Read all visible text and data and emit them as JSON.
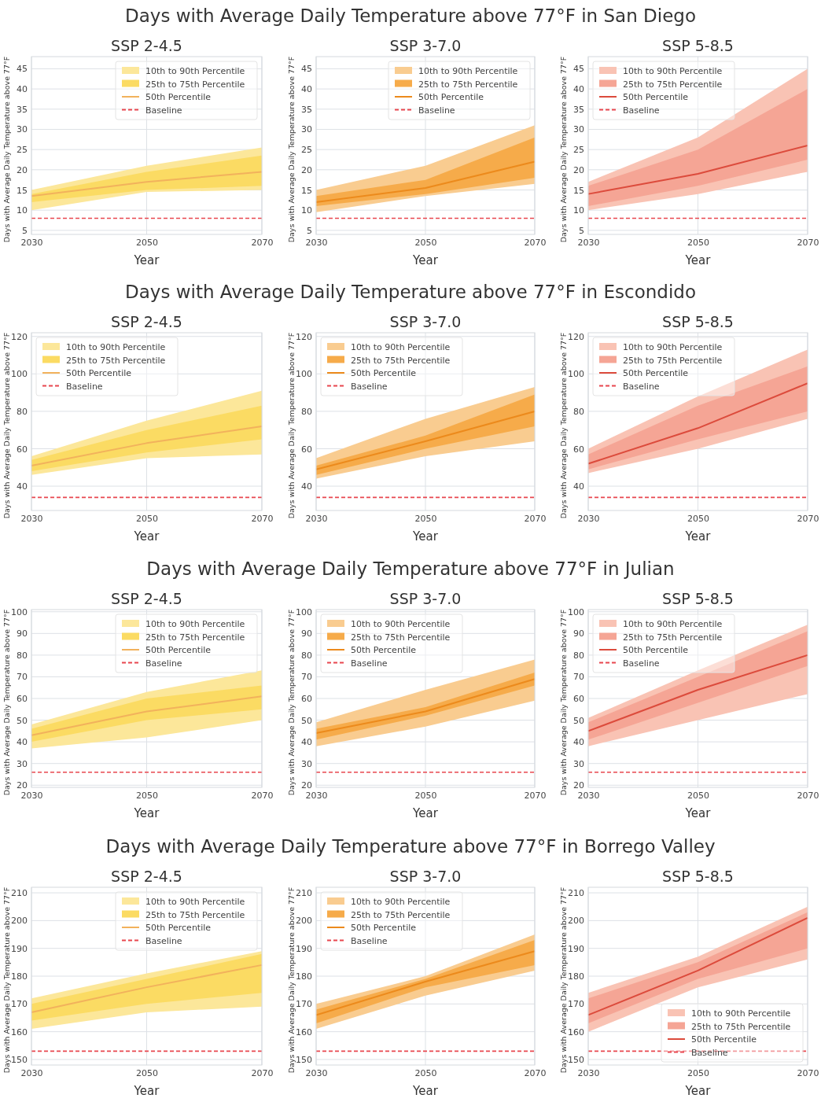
{
  "chart_data": [
    {
      "type": "line",
      "title": "Days with Average Daily Temperature above 77°F in San Diego",
      "subtitle": "SSP 2-4.5",
      "xlabel": "Year",
      "ylabel": "Days with Average Daily Temperature above 77°F",
      "x": [
        2030,
        2050,
        2070
      ],
      "xlim": [
        2030,
        2070
      ],
      "xticks": [
        2030,
        2050,
        2070
      ],
      "ylim": [
        4,
        48
      ],
      "yticks": [
        5,
        10,
        15,
        20,
        25,
        30,
        35,
        40,
        45
      ],
      "grid": true,
      "legend": "top right",
      "series": [
        {
          "name": "10th to 90th Percentile",
          "color": "#fce79a",
          "values": [
            null,
            null,
            null
          ],
          "lower": [
            10,
            14.5,
            15
          ],
          "upper": [
            15,
            21,
            25.5
          ]
        },
        {
          "name": "25th to 75th Percentile",
          "color": "#fbdb63",
          "values": [
            null,
            null,
            null
          ],
          "lower": [
            12,
            15,
            16
          ],
          "upper": [
            14,
            19.5,
            23.5
          ]
        },
        {
          "name": "50th Percentile",
          "color": "#f2b25c",
          "values": [
            13.5,
            17,
            19.5
          ]
        }
      ],
      "ref_lines": [
        {
          "axis": "y",
          "value": 8,
          "label": "Baseline",
          "color": "#e8474f",
          "line_style": "dashed"
        }
      ]
    },
    {
      "type": "line",
      "subtitle": "SSP 3-7.0",
      "xlabel": "Year",
      "ylabel": "Days with Average Daily Temperature above 77°F",
      "x": [
        2030,
        2050,
        2070
      ],
      "xlim": [
        2030,
        2070
      ],
      "xticks": [
        2030,
        2050,
        2070
      ],
      "ylim": [
        4,
        48
      ],
      "yticks": [
        5,
        10,
        15,
        20,
        25,
        30,
        35,
        40,
        45
      ],
      "grid": true,
      "legend": "top right",
      "series": [
        {
          "name": "10th to 90th Percentile",
          "color": "#f9cc90",
          "values": [
            null,
            null,
            null
          ],
          "lower": [
            9.5,
            13.5,
            16.5
          ],
          "upper": [
            15,
            21,
            31
          ]
        },
        {
          "name": "25th to 75th Percentile",
          "color": "#f6ab4a",
          "values": [
            null,
            null,
            null
          ],
          "lower": [
            11,
            14,
            18
          ],
          "upper": [
            13.5,
            17.5,
            28
          ]
        },
        {
          "name": "50th Percentile",
          "color": "#ec8a1c",
          "values": [
            12,
            15.5,
            22
          ]
        }
      ],
      "ref_lines": [
        {
          "axis": "y",
          "value": 8,
          "label": "Baseline",
          "color": "#e8474f",
          "line_style": "dashed"
        }
      ]
    },
    {
      "type": "line",
      "subtitle": "SSP 5-8.5",
      "xlabel": "Year",
      "ylabel": "Days with Average Daily Temperature above 77°F",
      "x": [
        2030,
        2050,
        2070
      ],
      "xlim": [
        2030,
        2070
      ],
      "xticks": [
        2030,
        2050,
        2070
      ],
      "ylim": [
        4,
        48
      ],
      "yticks": [
        5,
        10,
        15,
        20,
        25,
        30,
        35,
        40,
        45
      ],
      "grid": true,
      "legend": "top left",
      "series": [
        {
          "name": "10th to 90th Percentile",
          "color": "#f9c3b4",
          "values": [
            null,
            null,
            null
          ],
          "lower": [
            10,
            14,
            19.5
          ],
          "upper": [
            17,
            28,
            45
          ]
        },
        {
          "name": "25th to 75th Percentile",
          "color": "#f5a595",
          "values": [
            null,
            null,
            null
          ],
          "lower": [
            11,
            16,
            22.5
          ],
          "upper": [
            16,
            25,
            40
          ]
        },
        {
          "name": "50th Percentile",
          "color": "#dc4b3c",
          "values": [
            14,
            19,
            26
          ]
        }
      ],
      "ref_lines": [
        {
          "axis": "y",
          "value": 8,
          "label": "Baseline",
          "color": "#e8474f",
          "line_style": "dashed"
        }
      ]
    },
    {
      "type": "line",
      "title": "Days with Average Daily Temperature above 77°F in Escondido",
      "subtitle": "SSP 2-4.5",
      "xlabel": "Year",
      "ylabel": "Days with Average Daily Temperature above 77°F",
      "x": [
        2030,
        2050,
        2070
      ],
      "xlim": [
        2030,
        2070
      ],
      "xticks": [
        2030,
        2050,
        2070
      ],
      "ylim": [
        27,
        122
      ],
      "yticks": [
        40,
        60,
        80,
        100,
        120
      ],
      "grid": true,
      "legend": "top left",
      "series": [
        {
          "name": "10th to 90th Percentile",
          "color": "#fce79a",
          "values": [
            null,
            null,
            null
          ],
          "lower": [
            46,
            55,
            57
          ],
          "upper": [
            56,
            75,
            91
          ]
        },
        {
          "name": "25th to 75th Percentile",
          "color": "#fbdb63",
          "values": [
            null,
            null,
            null
          ],
          "lower": [
            48,
            58,
            65
          ],
          "upper": [
            54,
            70,
            83
          ]
        },
        {
          "name": "50th Percentile",
          "color": "#f2b25c",
          "values": [
            51,
            63,
            72
          ]
        }
      ],
      "ref_lines": [
        {
          "axis": "y",
          "value": 34,
          "label": "Baseline",
          "color": "#e8474f",
          "line_style": "dashed"
        }
      ]
    },
    {
      "type": "line",
      "subtitle": "SSP 3-7.0",
      "xlabel": "Year",
      "ylabel": "Days with Average Daily Temperature above 77°F",
      "x": [
        2030,
        2050,
        2070
      ],
      "xlim": [
        2030,
        2070
      ],
      "xticks": [
        2030,
        2050,
        2070
      ],
      "ylim": [
        27,
        122
      ],
      "yticks": [
        40,
        60,
        80,
        100,
        120
      ],
      "grid": true,
      "legend": "top left",
      "series": [
        {
          "name": "10th to 90th Percentile",
          "color": "#f9cc90",
          "values": [
            null,
            null,
            null
          ],
          "lower": [
            44,
            56,
            64
          ],
          "upper": [
            55,
            76,
            93
          ]
        },
        {
          "name": "25th to 75th Percentile",
          "color": "#f6ab4a",
          "values": [
            null,
            null,
            null
          ],
          "lower": [
            46,
            60,
            72
          ],
          "upper": [
            51,
            67,
            89
          ]
        },
        {
          "name": "50th Percentile",
          "color": "#ec8a1c",
          "values": [
            49,
            64,
            80
          ]
        }
      ],
      "ref_lines": [
        {
          "axis": "y",
          "value": 34,
          "label": "Baseline",
          "color": "#e8474f",
          "line_style": "dashed"
        }
      ]
    },
    {
      "type": "line",
      "subtitle": "SSP 5-8.5",
      "xlabel": "Year",
      "ylabel": "Days with Average Daily Temperature above 77°F",
      "x": [
        2030,
        2050,
        2070
      ],
      "xlim": [
        2030,
        2070
      ],
      "xticks": [
        2030,
        2050,
        2070
      ],
      "ylim": [
        27,
        122
      ],
      "yticks": [
        40,
        60,
        80,
        100,
        120
      ],
      "grid": true,
      "legend": "top left",
      "series": [
        {
          "name": "10th to 90th Percentile",
          "color": "#f9c3b4",
          "values": [
            null,
            null,
            null
          ],
          "lower": [
            47,
            60,
            76
          ],
          "upper": [
            60,
            88,
            113
          ]
        },
        {
          "name": "25th to 75th Percentile",
          "color": "#f5a595",
          "values": [
            null,
            null,
            null
          ],
          "lower": [
            49,
            65,
            80
          ],
          "upper": [
            57,
            83,
            104
          ]
        },
        {
          "name": "50th Percentile",
          "color": "#dc4b3c",
          "values": [
            52,
            71,
            95
          ]
        }
      ],
      "ref_lines": [
        {
          "axis": "y",
          "value": 34,
          "label": "Baseline",
          "color": "#e8474f",
          "line_style": "dashed"
        }
      ]
    },
    {
      "type": "line",
      "title": "Days with Average Daily Temperature above 77°F in Julian",
      "subtitle": "SSP 2-4.5",
      "xlabel": "Year",
      "ylabel": "Days with Average Daily Temperature above 77°F",
      "x": [
        2030,
        2050,
        2070
      ],
      "xlim": [
        2030,
        2070
      ],
      "xticks": [
        2030,
        2050,
        2070
      ],
      "ylim": [
        19,
        101
      ],
      "yticks": [
        20,
        30,
        40,
        50,
        60,
        70,
        80,
        90,
        100
      ],
      "grid": true,
      "legend": "top right",
      "series": [
        {
          "name": "10th to 90th Percentile",
          "color": "#fce79a",
          "values": [
            null,
            null,
            null
          ],
          "lower": [
            37,
            42,
            50
          ],
          "upper": [
            48,
            63,
            73
          ]
        },
        {
          "name": "25th to 75th Percentile",
          "color": "#fbdb63",
          "values": [
            null,
            null,
            null
          ],
          "lower": [
            40,
            50,
            55
          ],
          "upper": [
            46,
            60,
            66
          ]
        },
        {
          "name": "50th Percentile",
          "color": "#f2b25c",
          "values": [
            43,
            54,
            61
          ]
        }
      ],
      "ref_lines": [
        {
          "axis": "y",
          "value": 26,
          "label": "Baseline",
          "color": "#e8474f",
          "line_style": "dashed"
        }
      ]
    },
    {
      "type": "line",
      "subtitle": "SSP 3-7.0",
      "xlabel": "Year",
      "ylabel": "Days with Average Daily Temperature above 77°F",
      "x": [
        2030,
        2050,
        2070
      ],
      "xlim": [
        2030,
        2070
      ],
      "xticks": [
        2030,
        2050,
        2070
      ],
      "ylim": [
        19,
        101
      ],
      "yticks": [
        20,
        30,
        40,
        50,
        60,
        70,
        80,
        90,
        100
      ],
      "grid": true,
      "legend": "top left",
      "series": [
        {
          "name": "10th to 90th Percentile",
          "color": "#f9cc90",
          "values": [
            null,
            null,
            null
          ],
          "lower": [
            38,
            47,
            59
          ],
          "upper": [
            49,
            64,
            78
          ]
        },
        {
          "name": "25th to 75th Percentile",
          "color": "#f6ab4a",
          "values": [
            null,
            null,
            null
          ],
          "lower": [
            41,
            52,
            66
          ],
          "upper": [
            46,
            56,
            72
          ]
        },
        {
          "name": "50th Percentile",
          "color": "#ec8a1c",
          "values": [
            44,
            54,
            69
          ]
        }
      ],
      "ref_lines": [
        {
          "axis": "y",
          "value": 26,
          "label": "Baseline",
          "color": "#e8474f",
          "line_style": "dashed"
        }
      ]
    },
    {
      "type": "line",
      "subtitle": "SSP 5-8.5",
      "xlabel": "Year",
      "ylabel": "Days with Average Daily Temperature above 77°F",
      "x": [
        2030,
        2050,
        2070
      ],
      "xlim": [
        2030,
        2070
      ],
      "xticks": [
        2030,
        2050,
        2070
      ],
      "ylim": [
        19,
        101
      ],
      "yticks": [
        20,
        30,
        40,
        50,
        60,
        70,
        80,
        90,
        100
      ],
      "grid": true,
      "legend": "top left",
      "series": [
        {
          "name": "10th to 90th Percentile",
          "color": "#f9c3b4",
          "values": [
            null,
            null,
            null
          ],
          "lower": [
            38,
            50,
            62
          ],
          "upper": [
            51,
            73,
            94
          ]
        },
        {
          "name": "25th to 75th Percentile",
          "color": "#f5a595",
          "values": [
            null,
            null,
            null
          ],
          "lower": [
            41,
            58,
            75
          ],
          "upper": [
            49,
            70,
            91
          ]
        },
        {
          "name": "50th Percentile",
          "color": "#dc4b3c",
          "values": [
            45,
            64,
            80
          ]
        }
      ],
      "ref_lines": [
        {
          "axis": "y",
          "value": 26,
          "label": "Baseline",
          "color": "#e8474f",
          "line_style": "dashed"
        }
      ]
    },
    {
      "type": "line",
      "title": "Days with Average Daily Temperature above 77°F in Borrego Valley",
      "subtitle": "SSP 2-4.5",
      "xlabel": "Year",
      "ylabel": "Days with Average Daily Temperature above 77°F",
      "x": [
        2030,
        2050,
        2070
      ],
      "xlim": [
        2030,
        2070
      ],
      "xticks": [
        2030,
        2050,
        2070
      ],
      "ylim": [
        148,
        212
      ],
      "yticks": [
        150,
        160,
        170,
        180,
        190,
        200,
        210
      ],
      "grid": true,
      "legend": "top right",
      "series": [
        {
          "name": "10th to 90th Percentile",
          "color": "#fce79a",
          "values": [
            null,
            null,
            null
          ],
          "lower": [
            161,
            167,
            169
          ],
          "upper": [
            172,
            181,
            189
          ]
        },
        {
          "name": "25th to 75th Percentile",
          "color": "#fbdb63",
          "values": [
            null,
            null,
            null
          ],
          "lower": [
            164,
            170,
            174
          ],
          "upper": [
            170,
            179,
            188
          ]
        },
        {
          "name": "50th Percentile",
          "color": "#f2b25c",
          "values": [
            167,
            176,
            184
          ]
        }
      ],
      "ref_lines": [
        {
          "axis": "y",
          "value": 153,
          "label": "Baseline",
          "color": "#e8474f",
          "line_style": "dashed"
        }
      ]
    },
    {
      "type": "line",
      "subtitle": "SSP 3-7.0",
      "xlabel": "Year",
      "ylabel": "Days with Average Daily Temperature above 77°F",
      "x": [
        2030,
        2050,
        2070
      ],
      "xlim": [
        2030,
        2070
      ],
      "xticks": [
        2030,
        2050,
        2070
      ],
      "ylim": [
        148,
        212
      ],
      "yticks": [
        150,
        160,
        170,
        180,
        190,
        200,
        210
      ],
      "grid": true,
      "legend": "top left",
      "series": [
        {
          "name": "10th to 90th Percentile",
          "color": "#f9cc90",
          "values": [
            null,
            null,
            null
          ],
          "lower": [
            161,
            173,
            182
          ],
          "upper": [
            170,
            180,
            195
          ]
        },
        {
          "name": "25th to 75th Percentile",
          "color": "#f6ab4a",
          "values": [
            null,
            null,
            null
          ],
          "lower": [
            163,
            176,
            184
          ],
          "upper": [
            168,
            179,
            193
          ]
        },
        {
          "name": "50th Percentile",
          "color": "#ec8a1c",
          "values": [
            166,
            178,
            189
          ]
        }
      ],
      "ref_lines": [
        {
          "axis": "y",
          "value": 153,
          "label": "Baseline",
          "color": "#e8474f",
          "line_style": "dashed"
        }
      ]
    },
    {
      "type": "line",
      "subtitle": "SSP 5-8.5",
      "xlabel": "Year",
      "ylabel": "Days with Average Daily Temperature above 77°F",
      "x": [
        2030,
        2050,
        2070
      ],
      "xlim": [
        2030,
        2070
      ],
      "xticks": [
        2030,
        2050,
        2070
      ],
      "ylim": [
        148,
        212
      ],
      "yticks": [
        150,
        160,
        170,
        180,
        190,
        200,
        210
      ],
      "grid": true,
      "legend": "bottom right",
      "series": [
        {
          "name": "10th to 90th Percentile",
          "color": "#f9c3b4",
          "values": [
            null,
            null,
            null
          ],
          "lower": [
            160,
            176,
            186
          ],
          "upper": [
            174,
            187,
            205
          ]
        },
        {
          "name": "25th to 75th Percentile",
          "color": "#f5a595",
          "values": [
            null,
            null,
            null
          ],
          "lower": [
            163,
            179,
            190
          ],
          "upper": [
            172,
            185,
            203
          ]
        },
        {
          "name": "50th Percentile",
          "color": "#dc4b3c",
          "values": [
            166,
            182,
            201
          ]
        }
      ],
      "ref_lines": [
        {
          "axis": "y",
          "value": 153,
          "label": "Baseline",
          "color": "#e8474f",
          "line_style": "dashed"
        }
      ]
    }
  ]
}
